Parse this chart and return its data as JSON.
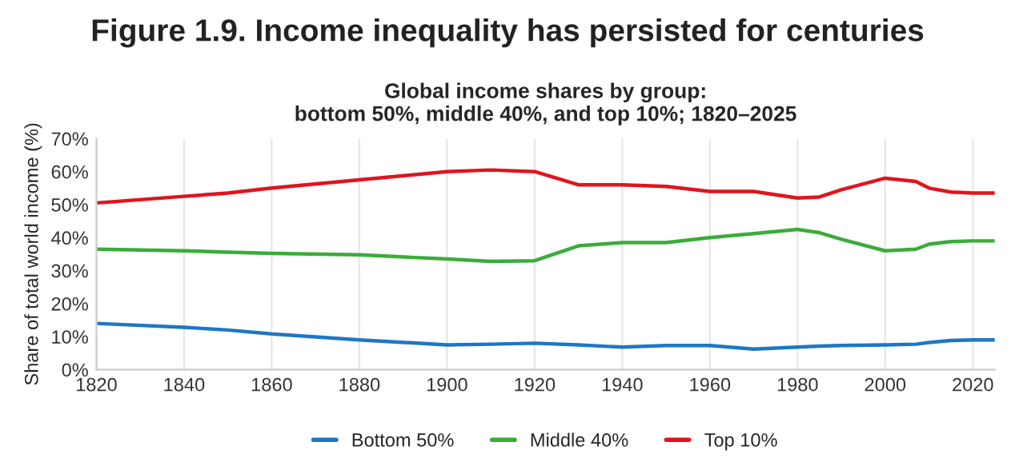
{
  "chart_data": {
    "type": "line",
    "title": "Figure 1.9. Income inequality has persisted for centuries",
    "subtitle": "Global income shares by group:\nbottom 50%, middle 40%, and top 10%; 1820–2025",
    "ylabel": "Share of total world income (%)",
    "x": [
      1820,
      1840,
      1850,
      1860,
      1880,
      1900,
      1910,
      1920,
      1930,
      1940,
      1950,
      1960,
      1970,
      1980,
      1985,
      1990,
      2000,
      2007,
      2010,
      2015,
      2020,
      2025
    ],
    "series": [
      {
        "name": "Bottom 50%",
        "color": "#1f77c4",
        "values": [
          14,
          12.8,
          12,
          10.8,
          9,
          7.5,
          7.7,
          8,
          7.5,
          6.8,
          7.3,
          7.3,
          6.2,
          6.8,
          7.1,
          7.3,
          7.5,
          7.7,
          8.2,
          8.8,
          9,
          9
        ]
      },
      {
        "name": "Middle 40%",
        "color": "#3aac3a",
        "values": [
          36.5,
          36,
          35.6,
          35.2,
          34.8,
          33.5,
          32.8,
          33,
          37.5,
          38.5,
          38.5,
          40,
          41.2,
          42.5,
          41.5,
          39.5,
          36,
          36.5,
          38,
          38.8,
          39,
          39
        ]
      },
      {
        "name": "Top 10%",
        "color": "#e0141e",
        "values": [
          50.5,
          52.5,
          53.5,
          55,
          57.5,
          60,
          60.5,
          60,
          56,
          56,
          55.5,
          54,
          54,
          52,
          52.3,
          54.5,
          58,
          57,
          55,
          53.8,
          53.5,
          53.5
        ]
      }
    ],
    "xlim": [
      1820,
      2025
    ],
    "xticks": [
      1820,
      1840,
      1860,
      1880,
      1900,
      1920,
      1940,
      1960,
      1980,
      2000,
      2020
    ],
    "ylim": [
      0,
      70
    ],
    "yticks": [
      {
        "value": 0,
        "label": "0%"
      },
      {
        "value": 10,
        "label": "10%"
      },
      {
        "value": 20,
        "label": "20%"
      },
      {
        "value": 30,
        "label": "30%"
      },
      {
        "value": 40,
        "label": "40%"
      },
      {
        "value": 50,
        "label": "50%"
      },
      {
        "value": 60,
        "label": "60%"
      },
      {
        "value": 70,
        "label": "70%"
      }
    ],
    "grid": "x",
    "legend": "bottom",
    "marker": "none",
    "line_style": "solid"
  }
}
